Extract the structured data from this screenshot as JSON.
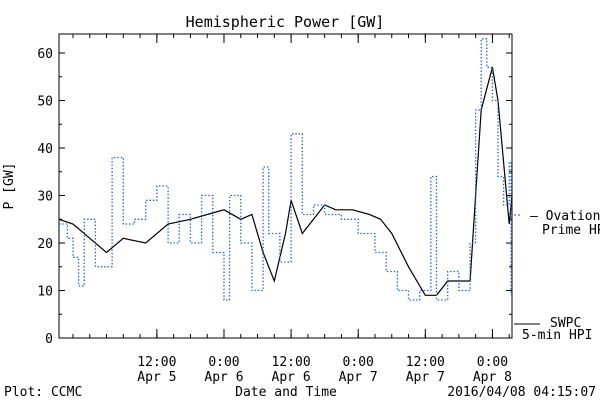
{
  "chart_data": {
    "type": "line",
    "title": "Hemispheric Power [GW]",
    "ylabel": "P [GW]",
    "xlabel": "Date and Time",
    "ylim": [
      0,
      64
    ],
    "xlim": [
      "2016-04-04 18:30",
      "2016-04-08 03:30"
    ],
    "yticks": [
      0,
      10,
      20,
      30,
      40,
      50,
      60
    ],
    "xticks": [
      {
        "line1": "12:00",
        "line2": "Apr 5",
        "x": "2016-04-05 12:00"
      },
      {
        "line1": "0:00",
        "line2": "Apr 6",
        "x": "2016-04-06 00:00"
      },
      {
        "line1": "12:00",
        "line2": "Apr 6",
        "x": "2016-04-06 12:00"
      },
      {
        "line1": "0:00",
        "line2": "Apr 7",
        "x": "2016-04-07 00:00"
      },
      {
        "line1": "12:00",
        "line2": "Apr 7",
        "x": "2016-04-07 12:00"
      },
      {
        "line1": "0:00",
        "line2": "Apr 8",
        "x": "2016-04-08 00:00"
      }
    ],
    "grid": false,
    "series": [
      {
        "name": "SWPC 5-min HPI",
        "name_line1": "SWPC",
        "name_line2": "5-min HPI",
        "color": "#000000",
        "style": "solid",
        "points": [
          [
            "2016-04-04 18:30",
            25
          ],
          [
            "2016-04-04 21:00",
            24
          ],
          [
            "2016-04-05 00:00",
            21
          ],
          [
            "2016-04-05 03:00",
            18
          ],
          [
            "2016-04-05 06:00",
            21
          ],
          [
            "2016-04-05 10:00",
            20
          ],
          [
            "2016-04-05 14:00",
            24
          ],
          [
            "2016-04-05 18:00",
            25
          ],
          [
            "2016-04-05 21:00",
            26
          ],
          [
            "2016-04-06 00:00",
            27
          ],
          [
            "2016-04-06 03:00",
            25
          ],
          [
            "2016-04-06 05:00",
            26
          ],
          [
            "2016-04-06 07:00",
            18
          ],
          [
            "2016-04-06 09:00",
            12
          ],
          [
            "2016-04-06 11:00",
            22
          ],
          [
            "2016-04-06 12:00",
            29
          ],
          [
            "2016-04-06 14:00",
            22
          ],
          [
            "2016-04-06 16:00",
            25
          ],
          [
            "2016-04-06 18:00",
            28
          ],
          [
            "2016-04-06 20:00",
            27
          ],
          [
            "2016-04-06 23:00",
            27
          ],
          [
            "2016-04-07 02:00",
            26
          ],
          [
            "2016-04-07 04:00",
            25
          ],
          [
            "2016-04-07 06:00",
            22
          ],
          [
            "2016-04-07 09:00",
            15
          ],
          [
            "2016-04-07 12:00",
            9
          ],
          [
            "2016-04-07 14:00",
            9
          ],
          [
            "2016-04-07 16:00",
            12
          ],
          [
            "2016-04-07 18:00",
            12
          ],
          [
            "2016-04-07 20:00",
            12
          ],
          [
            "2016-04-07 21:00",
            30
          ],
          [
            "2016-04-07 22:00",
            48
          ],
          [
            "2016-04-08 00:00",
            57
          ],
          [
            "2016-04-08 01:00",
            50
          ],
          [
            "2016-04-08 02:00",
            37
          ],
          [
            "2016-04-08 03:00",
            24
          ],
          [
            "2016-04-08 03:30",
            30
          ]
        ]
      },
      {
        "name": "Ovation Prime HPI",
        "name_line1": "Ovation",
        "name_line2": "Prime HPI",
        "color": "#1a5fd0",
        "style": "dotted",
        "points": [
          [
            "2016-04-04 18:30",
            24
          ],
          [
            "2016-04-04 20:00",
            21
          ],
          [
            "2016-04-04 21:00",
            17
          ],
          [
            "2016-04-04 22:00",
            11
          ],
          [
            "2016-04-04 23:00",
            25
          ],
          [
            "2016-04-05 01:00",
            15
          ],
          [
            "2016-04-05 04:00",
            38
          ],
          [
            "2016-04-05 06:00",
            24
          ],
          [
            "2016-04-05 08:00",
            25
          ],
          [
            "2016-04-05 10:00",
            29
          ],
          [
            "2016-04-05 12:00",
            32
          ],
          [
            "2016-04-05 14:00",
            20
          ],
          [
            "2016-04-05 16:00",
            26
          ],
          [
            "2016-04-05 18:00",
            20
          ],
          [
            "2016-04-05 20:00",
            30
          ],
          [
            "2016-04-05 22:00",
            18
          ],
          [
            "2016-04-06 00:00",
            8
          ],
          [
            "2016-04-06 01:00",
            30
          ],
          [
            "2016-04-06 03:00",
            20
          ],
          [
            "2016-04-06 05:00",
            10
          ],
          [
            "2016-04-06 07:00",
            36
          ],
          [
            "2016-04-06 08:00",
            22
          ],
          [
            "2016-04-06 10:00",
            16
          ],
          [
            "2016-04-06 12:00",
            43
          ],
          [
            "2016-04-06 14:00",
            26
          ],
          [
            "2016-04-06 16:00",
            28
          ],
          [
            "2016-04-06 18:00",
            26
          ],
          [
            "2016-04-06 21:00",
            25
          ],
          [
            "2016-04-07 00:00",
            22
          ],
          [
            "2016-04-07 03:00",
            18
          ],
          [
            "2016-04-07 05:00",
            14
          ],
          [
            "2016-04-07 07:00",
            10
          ],
          [
            "2016-04-07 09:00",
            8
          ],
          [
            "2016-04-07 11:00",
            10
          ],
          [
            "2016-04-07 13:00",
            34
          ],
          [
            "2016-04-07 14:00",
            8
          ],
          [
            "2016-04-07 16:00",
            14
          ],
          [
            "2016-04-07 18:00",
            10
          ],
          [
            "2016-04-07 20:00",
            20
          ],
          [
            "2016-04-07 21:00",
            48
          ],
          [
            "2016-04-07 22:00",
            63
          ],
          [
            "2016-04-07 23:00",
            57
          ],
          [
            "2016-04-08 00:00",
            50
          ],
          [
            "2016-04-08 01:00",
            34
          ],
          [
            "2016-04-08 02:00",
            28
          ],
          [
            "2016-04-08 03:00",
            37
          ],
          [
            "2016-04-08 03:20",
            9
          ]
        ]
      }
    ]
  },
  "footer": {
    "left": "Plot: CCMC",
    "right": "2016/04/08 04:15:07"
  }
}
